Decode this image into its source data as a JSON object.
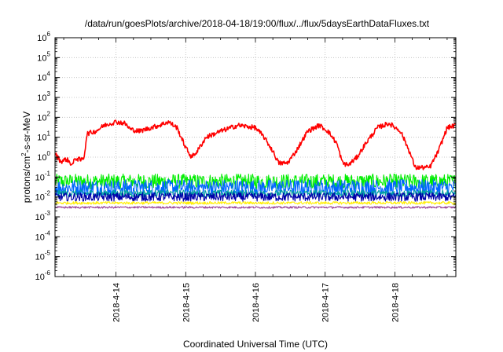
{
  "chart_data": {
    "type": "line",
    "title": "/data/run/goesPlots/archive/2018-04-18/19:00/flux/../flux/5daysEarthDataFluxes.txt",
    "xlabel": "Coordinated Universal Time (UTC)",
    "ylabel": {
      "pre": "protons/cm",
      "sup": "2",
      "post": "-s-sr-MeV"
    },
    "x_unit": "day",
    "x_range": [
      "2018-04-13 03:00",
      "2018-04-18 21:00"
    ],
    "y_scale": "log",
    "ylim_exponent": [
      -6,
      6
    ],
    "y_ticks": [
      {
        "base": "10",
        "exp": "6"
      },
      {
        "base": "10",
        "exp": "5"
      },
      {
        "base": "10",
        "exp": "4"
      },
      {
        "base": "10",
        "exp": "3"
      },
      {
        "base": "10",
        "exp": "2"
      },
      {
        "base": "10",
        "exp": "1"
      },
      {
        "base": "10",
        "exp": "0"
      },
      {
        "base": "10",
        "exp": "-1"
      },
      {
        "base": "10",
        "exp": "-2"
      },
      {
        "base": "10",
        "exp": "-3"
      },
      {
        "base": "10",
        "exp": "-4"
      },
      {
        "base": "10",
        "exp": "-5"
      },
      {
        "base": "10",
        "exp": "-6"
      }
    ],
    "x_ticks": [
      {
        "label": "2018-4-14",
        "x": "2018-04-14"
      },
      {
        "label": "2018-4-15",
        "x": "2018-04-15"
      },
      {
        "label": "2018-4-16",
        "x": "2018-04-16"
      },
      {
        "label": "2018-4-17",
        "x": "2018-04-17"
      },
      {
        "label": "2018-4-18",
        "x": "2018-04-18"
      }
    ],
    "grid": true,
    "series": [
      {
        "color": "#ff0000",
        "noise_log": 0.12,
        "points": [
          [
            "2018-04-13 03:00",
            1.5
          ],
          [
            "2018-04-13 05:00",
            0.6
          ],
          [
            "2018-04-13 07:00",
            0.8
          ],
          [
            "2018-04-13 09:00",
            0.4
          ],
          [
            "2018-04-13 10:00",
            0.9
          ],
          [
            "2018-04-13 12:00",
            0.7
          ],
          [
            "2018-04-13 13:00",
            1.0
          ],
          [
            "2018-04-13 14:00",
            15
          ],
          [
            "2018-04-13 17:00",
            20
          ],
          [
            "2018-04-13 20:00",
            40
          ],
          [
            "2018-04-14 00:00",
            60
          ],
          [
            "2018-04-14 03:00",
            50
          ],
          [
            "2018-04-14 05:00",
            25
          ],
          [
            "2018-04-14 08:00",
            20
          ],
          [
            "2018-04-14 12:00",
            30
          ],
          [
            "2018-04-14 15:00",
            40
          ],
          [
            "2018-04-14 18:00",
            60
          ],
          [
            "2018-04-14 21:00",
            30
          ],
          [
            "2018-04-15 00:00",
            3
          ],
          [
            "2018-04-15 02:00",
            1
          ],
          [
            "2018-04-15 04:00",
            2
          ],
          [
            "2018-04-15 07:00",
            10
          ],
          [
            "2018-04-15 12:00",
            20
          ],
          [
            "2018-04-15 18:00",
            40
          ],
          [
            "2018-04-16 00:00",
            30
          ],
          [
            "2018-04-16 03:00",
            10
          ],
          [
            "2018-04-16 06:00",
            2
          ],
          [
            "2018-04-16 08:00",
            0.5
          ],
          [
            "2018-04-16 11:00",
            0.5
          ],
          [
            "2018-04-16 14:00",
            2
          ],
          [
            "2018-04-16 18:00",
            20
          ],
          [
            "2018-04-16 22:00",
            40
          ],
          [
            "2018-04-17 01:00",
            20
          ],
          [
            "2018-04-17 04:00",
            5
          ],
          [
            "2018-04-17 06:00",
            0.5
          ],
          [
            "2018-04-17 08:00",
            0.4
          ],
          [
            "2018-04-17 11:00",
            1
          ],
          [
            "2018-04-17 14:00",
            5
          ],
          [
            "2018-04-17 18:00",
            30
          ],
          [
            "2018-04-17 22:00",
            50
          ],
          [
            "2018-04-18 02:00",
            20
          ],
          [
            "2018-04-18 05:00",
            2
          ],
          [
            "2018-04-18 07:00",
            0.3
          ],
          [
            "2018-04-18 10:00",
            0.3
          ],
          [
            "2018-04-18 12:00",
            0.3
          ],
          [
            "2018-04-18 15:00",
            2
          ],
          [
            "2018-04-18 18:00",
            30
          ],
          [
            "2018-04-18 21:00",
            40
          ]
        ]
      },
      {
        "color": "#00ee00",
        "noise_log": 0.38,
        "points": [
          [
            "2018-04-13 03:00",
            0.06
          ],
          [
            "2018-04-18 21:00",
            0.06
          ]
        ]
      },
      {
        "color": "#0066ff",
        "noise_log": 0.4,
        "points": [
          [
            "2018-04-13 03:00",
            0.03
          ],
          [
            "2018-04-18 21:00",
            0.03
          ]
        ]
      },
      {
        "color": "#00a0a0",
        "noise_log": 0.18,
        "points": [
          [
            "2018-04-13 03:00",
            0.015
          ],
          [
            "2018-04-18 21:00",
            0.015
          ]
        ]
      },
      {
        "color": "#0000aa",
        "noise_log": 0.22,
        "points": [
          [
            "2018-04-13 03:00",
            0.01
          ],
          [
            "2018-04-18 21:00",
            0.01
          ]
        ]
      },
      {
        "color": "#ffee00",
        "noise_log": 0.07,
        "points": [
          [
            "2018-04-13 03:00",
            0.005
          ],
          [
            "2018-04-18 21:00",
            0.005
          ]
        ]
      },
      {
        "color": "#994499",
        "noise_log": 0.05,
        "points": [
          [
            "2018-04-13 03:00",
            0.003
          ],
          [
            "2018-04-18 21:00",
            0.003
          ]
        ]
      }
    ]
  }
}
